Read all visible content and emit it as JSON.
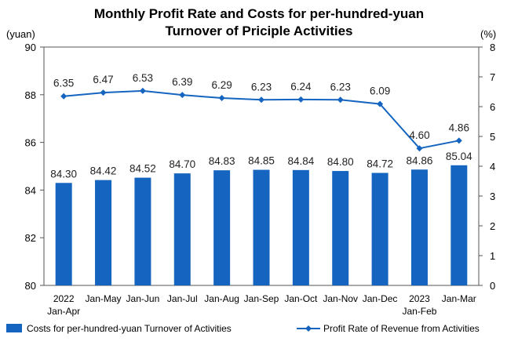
{
  "chart_data": {
    "type": "bar",
    "title_lines": [
      "Monthly Profit Rate and Costs for per-hundred-yuan",
      "Turnover of Priciple Activities"
    ],
    "y_left_unit": "(yuan)",
    "y_right_unit": "(%)",
    "y_left_lim": [
      80,
      90
    ],
    "y_left_ticks": [
      "80",
      "82",
      "84",
      "86",
      "88",
      "90"
    ],
    "y_right_lim": [
      0,
      8
    ],
    "y_right_ticks": [
      "0",
      "1",
      "2",
      "3",
      "4",
      "5",
      "6",
      "7",
      "8"
    ],
    "categories": [
      [
        "2022",
        "Jan-Apr"
      ],
      [
        "Jan-May"
      ],
      [
        "Jan-Jun"
      ],
      [
        "Jan-Jul"
      ],
      [
        "Jan-Aug"
      ],
      [
        "Jan-Sep"
      ],
      [
        "Jan-Oct"
      ],
      [
        "Jan-Nov"
      ],
      [
        "Jan-Dec"
      ],
      [
        "2023",
        "Jan-Feb"
      ],
      [
        "Jan-Mar"
      ]
    ],
    "series": [
      {
        "name": "Costs for per-hundred-yuan Turnover of Activities",
        "kind": "bar",
        "axis": "left",
        "color": "#1565C0",
        "values": [
          84.3,
          84.42,
          84.52,
          84.7,
          84.83,
          84.85,
          84.84,
          84.8,
          84.72,
          84.86,
          85.04
        ],
        "labels": [
          "84.30",
          "84.42",
          "84.52",
          "84.70",
          "84.83",
          "84.85",
          "84.84",
          "84.80",
          "84.72",
          "84.86",
          "85.04"
        ]
      },
      {
        "name": "Profit Rate of Revenue from Activities",
        "kind": "line",
        "axis": "right",
        "color": "#1565C0",
        "values": [
          6.35,
          6.47,
          6.53,
          6.39,
          6.29,
          6.23,
          6.24,
          6.23,
          6.09,
          4.6,
          4.86
        ],
        "labels": [
          "6.35",
          "6.47",
          "6.53",
          "6.39",
          "6.29",
          "6.23",
          "6.24",
          "6.23",
          "6.09",
          "4.60",
          "4.86"
        ]
      }
    ],
    "legend_position": "bottom",
    "grid": false
  }
}
